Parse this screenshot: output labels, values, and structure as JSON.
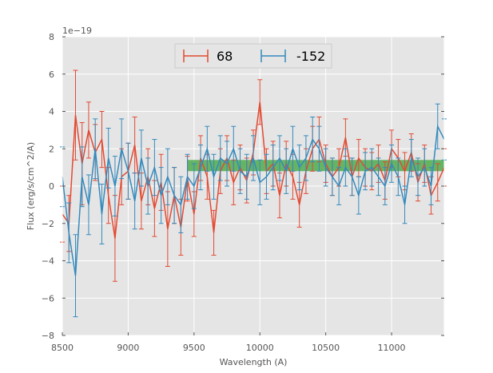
{
  "chart_data": {
    "type": "line",
    "title": "",
    "xlabel": "Wavelength (A)",
    "ylabel": "Flux (erg/s/cm^2/A)",
    "offset_label": "1e−19",
    "xlim": [
      8500,
      11400
    ],
    "ylim": [
      -8,
      8
    ],
    "x_ticks": [
      8500,
      9000,
      9500,
      10000,
      10500,
      11000
    ],
    "y_ticks": [
      -8,
      -6,
      -4,
      -2,
      0,
      2,
      4,
      6,
      8
    ],
    "grid": true,
    "legend_position": "top-center",
    "colors": {
      "background": "#e5e5e5",
      "series_68": "#e24a33",
      "series_minus152": "#348abd",
      "band": "#4dab4d"
    },
    "band": {
      "x_start": 9450,
      "x_end": 11400,
      "y_low": 0.8,
      "y_high": 1.4
    },
    "series": [
      {
        "name": "68",
        "x": [
          8500,
          8550,
          8600,
          8650,
          8700,
          8750,
          8800,
          8850,
          8900,
          8950,
          9000,
          9050,
          9100,
          9150,
          9200,
          9250,
          9300,
          9350,
          9400,
          9450,
          9500,
          9550,
          9600,
          9650,
          9700,
          9750,
          9800,
          9850,
          9900,
          9950,
          10000,
          10050,
          10100,
          10150,
          10200,
          10250,
          10300,
          10350,
          10400,
          10450,
          10500,
          10550,
          10600,
          10650,
          10700,
          10750,
          10800,
          10850,
          10900,
          10950,
          11000,
          11050,
          11100,
          11150,
          11200,
          11250,
          11300,
          11350,
          11400
        ],
        "values": [
          -1.5,
          -2.0,
          3.8,
          1.2,
          3.0,
          1.8,
          2.5,
          -0.5,
          -2.8,
          0.5,
          0.8,
          2.2,
          -0.8,
          0.5,
          -1.2,
          0.2,
          -2.3,
          -0.5,
          -2.2,
          0.4,
          -1.5,
          1.5,
          0.5,
          -2.5,
          0.8,
          1.5,
          0.2,
          1.0,
          0.3,
          1.8,
          4.5,
          0.8,
          1.2,
          -0.5,
          1.2,
          0.5,
          -1.0,
          0.8,
          2.0,
          2.5,
          1.2,
          0.5,
          1.0,
          2.6,
          0.5,
          1.5,
          1.0,
          0.8,
          1.2,
          0.3,
          2.0,
          1.5,
          0.8,
          1.8,
          0.2,
          1.2,
          -0.5,
          0.2,
          1.0
        ],
        "errors": [
          1.5,
          1.5,
          2.4,
          2.2,
          1.5,
          1.5,
          1.5,
          1.5,
          2.3,
          1.5,
          1.5,
          1.5,
          1.5,
          1.5,
          1.5,
          1.5,
          2.0,
          1.5,
          1.5,
          1.2,
          1.2,
          1.2,
          1.2,
          1.2,
          1.2,
          1.2,
          1.2,
          1.2,
          1.2,
          1.2,
          1.2,
          1.2,
          1.2,
          1.2,
          1.2,
          1.2,
          1.2,
          1.2,
          1.2,
          1.2,
          1.0,
          1.0,
          1.0,
          1.0,
          1.0,
          1.0,
          1.0,
          1.0,
          1.0,
          1.0,
          1.0,
          1.0,
          1.0,
          1.0,
          1.0,
          1.0,
          1.0,
          1.0,
          1.0
        ]
      },
      {
        "name": "-152",
        "x": [
          8500,
          8550,
          8600,
          8650,
          8700,
          8750,
          8800,
          8850,
          8900,
          8950,
          9000,
          9050,
          9100,
          9150,
          9200,
          9250,
          9300,
          9350,
          9400,
          9450,
          9500,
          9550,
          9600,
          9650,
          9700,
          9750,
          9800,
          9850,
          9900,
          9950,
          10000,
          10050,
          10100,
          10150,
          10200,
          10250,
          10300,
          10350,
          10400,
          10450,
          10500,
          10550,
          10600,
          10650,
          10700,
          10750,
          10800,
          10850,
          10900,
          10950,
          11000,
          11050,
          11100,
          11150,
          11200,
          11250,
          11300,
          11350,
          11400
        ],
        "values": [
          0.5,
          -2.5,
          -4.8,
          0.5,
          -1.0,
          2.0,
          -1.5,
          1.5,
          0.0,
          2.0,
          0.8,
          -0.8,
          1.5,
          0.0,
          1.0,
          -0.5,
          0.5,
          -0.5,
          -1.0,
          0.5,
          0.0,
          1.0,
          2.0,
          0.5,
          1.5,
          1.2,
          2.0,
          0.8,
          0.5,
          1.5,
          0.2,
          0.5,
          1.0,
          1.5,
          0.8,
          2.0,
          1.0,
          1.5,
          2.5,
          2.0,
          1.0,
          0.5,
          0.0,
          1.0,
          0.5,
          -0.5,
          0.8,
          1.0,
          0.5,
          0.0,
          1.2,
          0.5,
          -1.0,
          1.5,
          0.5,
          1.0,
          0.0,
          3.2,
          2.5
        ],
        "errors": [
          1.6,
          1.6,
          2.2,
          1.6,
          1.6,
          1.6,
          1.6,
          1.6,
          1.6,
          1.6,
          1.5,
          1.5,
          1.5,
          1.5,
          1.5,
          1.5,
          1.5,
          1.5,
          1.5,
          1.2,
          1.2,
          1.2,
          1.2,
          1.2,
          1.2,
          1.2,
          1.2,
          1.2,
          1.2,
          1.2,
          1.2,
          1.2,
          1.2,
          1.2,
          1.2,
          1.2,
          1.2,
          1.2,
          1.2,
          1.2,
          1.0,
          1.0,
          1.0,
          1.0,
          1.0,
          1.0,
          1.0,
          1.0,
          1.0,
          1.0,
          1.0,
          1.0,
          1.0,
          1.0,
          1.0,
          1.0,
          1.0,
          1.2,
          1.1
        ]
      }
    ]
  }
}
